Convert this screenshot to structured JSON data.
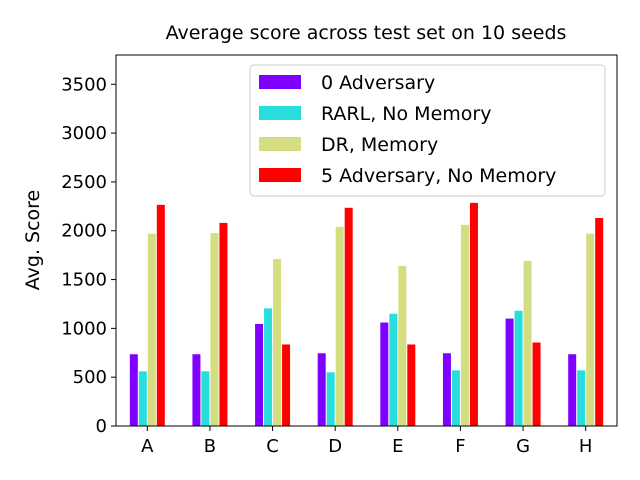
{
  "chart_data": {
    "type": "bar",
    "title": "Average score across test set on 10 seeds",
    "xlabel": "",
    "ylabel": "Avg. Score",
    "categories": [
      "A",
      "B",
      "C",
      "D",
      "E",
      "F",
      "G",
      "H"
    ],
    "ylim": [
      0,
      3800
    ],
    "yticks": [
      0,
      500,
      1000,
      1500,
      2000,
      2500,
      3000,
      3500
    ],
    "grid": false,
    "legend_position": "top-right",
    "series": [
      {
        "name": "0 Adversary",
        "color": "#7f00ff",
        "values": [
          735,
          735,
          1045,
          745,
          1060,
          745,
          1100,
          735
        ]
      },
      {
        "name": "RARL, No Memory",
        "color": "#2adddd",
        "values": [
          560,
          560,
          1205,
          550,
          1150,
          570,
          1180,
          570
        ]
      },
      {
        "name": "DR, Memory",
        "color": "#d4dd80",
        "values": [
          1970,
          1975,
          1710,
          2040,
          1640,
          2060,
          1690,
          1970
        ]
      },
      {
        "name": "5 Adversary, No Memory",
        "color": "#ff0000",
        "values": [
          2265,
          2080,
          835,
          2235,
          835,
          2285,
          855,
          2130
        ]
      }
    ]
  }
}
